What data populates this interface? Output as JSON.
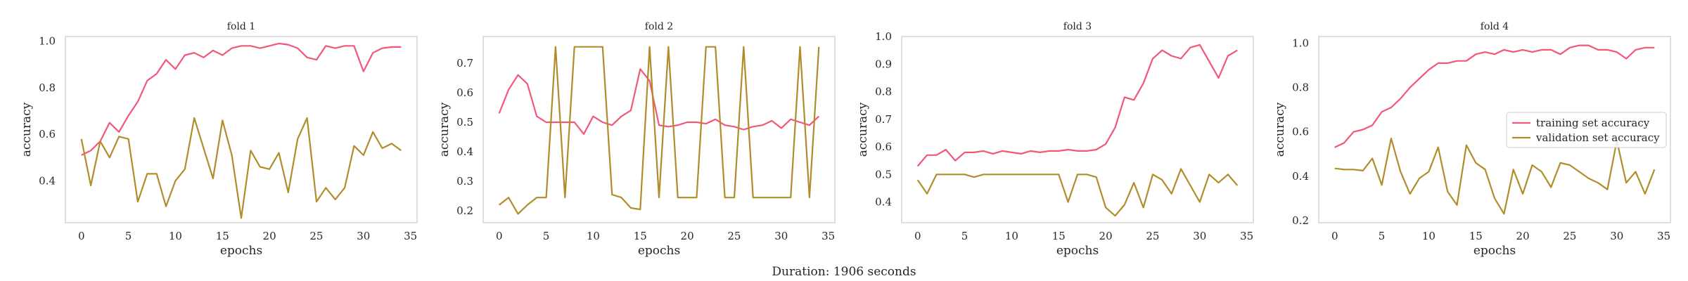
{
  "footer": {
    "duration_text": "Duration: 1906 seconds"
  },
  "colors": {
    "training": "#f25778",
    "validation": "#b08d2a",
    "frame": "#cccccc",
    "text": "#262626"
  },
  "legend": {
    "training_label": "training set accuracy",
    "validation_label": "validation set accuracy",
    "placement": "center-right of fold 4"
  },
  "chart_data": [
    {
      "type": "line",
      "title": "fold 1",
      "xlabel": "epochs",
      "ylabel": "accuracy",
      "xlim": [
        -1.7,
        35.7
      ],
      "ylim": [
        0.22,
        1.02
      ],
      "xticks": [
        0,
        5,
        10,
        15,
        20,
        25,
        30,
        35
      ],
      "yticks": [
        0.4,
        0.6,
        0.8,
        1.0
      ],
      "ytick_labels": [
        "0.4",
        "0.6",
        "0.8",
        "1.0"
      ],
      "grid": false,
      "x": [
        0,
        1,
        2,
        3,
        4,
        5,
        6,
        7,
        8,
        9,
        10,
        11,
        12,
        13,
        14,
        15,
        16,
        17,
        18,
        19,
        20,
        21,
        22,
        23,
        24,
        25,
        26,
        27,
        28,
        29,
        30,
        31,
        32,
        33,
        34
      ],
      "series": [
        {
          "name": "training set accuracy",
          "values": [
            0.51,
            0.53,
            0.57,
            0.65,
            0.61,
            0.68,
            0.74,
            0.83,
            0.86,
            0.92,
            0.88,
            0.94,
            0.95,
            0.93,
            0.96,
            0.94,
            0.97,
            0.98,
            0.98,
            0.97,
            0.98,
            0.99,
            0.985,
            0.97,
            0.93,
            0.92,
            0.98,
            0.97,
            0.98,
            0.98,
            0.87,
            0.95,
            0.97,
            0.975,
            0.975
          ]
        },
        {
          "name": "validation set accuracy",
          "values": [
            0.58,
            0.38,
            0.57,
            0.5,
            0.59,
            0.58,
            0.31,
            0.43,
            0.43,
            0.29,
            0.4,
            0.45,
            0.67,
            0.54,
            0.41,
            0.66,
            0.51,
            0.24,
            0.53,
            0.46,
            0.45,
            0.52,
            0.35,
            0.58,
            0.67,
            0.31,
            0.37,
            0.32,
            0.37,
            0.55,
            0.51,
            0.61,
            0.54,
            0.56,
            0.53
          ]
        }
      ]
    },
    {
      "type": "line",
      "title": "fold 2",
      "xlabel": "epochs",
      "ylabel": "accuracy",
      "xlim": [
        -1.7,
        35.7
      ],
      "ylim": [
        0.16,
        0.79
      ],
      "xticks": [
        0,
        5,
        10,
        15,
        20,
        25,
        30,
        35
      ],
      "yticks": [
        0.2,
        0.3,
        0.4,
        0.5,
        0.6,
        0.7
      ],
      "ytick_labels": [
        "0.2",
        "0.3",
        "0.4",
        "0.5",
        "0.6",
        "0.7"
      ],
      "grid": false,
      "x": [
        0,
        1,
        2,
        3,
        4,
        5,
        6,
        7,
        8,
        9,
        10,
        11,
        12,
        13,
        14,
        15,
        16,
        17,
        18,
        19,
        20,
        21,
        22,
        23,
        24,
        25,
        26,
        27,
        28,
        29,
        30,
        31,
        32,
        33,
        34
      ],
      "series": [
        {
          "name": "training set accuracy",
          "values": [
            0.53,
            0.61,
            0.66,
            0.63,
            0.52,
            0.5,
            0.5,
            0.5,
            0.5,
            0.46,
            0.52,
            0.5,
            0.49,
            0.52,
            0.54,
            0.68,
            0.64,
            0.49,
            0.485,
            0.49,
            0.5,
            0.5,
            0.495,
            0.51,
            0.49,
            0.485,
            0.475,
            0.485,
            0.49,
            0.505,
            0.48,
            0.51,
            0.5,
            0.49,
            0.52
          ]
        },
        {
          "name": "validation set accuracy",
          "values": [
            0.22,
            0.245,
            0.19,
            0.22,
            0.245,
            0.245,
            0.755,
            0.245,
            0.755,
            0.755,
            0.755,
            0.755,
            0.255,
            0.245,
            0.21,
            0.205,
            0.755,
            0.245,
            0.755,
            0.245,
            0.245,
            0.245,
            0.755,
            0.755,
            0.245,
            0.245,
            0.755,
            0.245,
            0.245,
            0.245,
            0.245,
            0.245,
            0.755,
            0.245,
            0.755
          ]
        }
      ]
    },
    {
      "type": "line",
      "title": "fold 3",
      "xlabel": "epochs",
      "ylabel": "accuracy",
      "xlim": [
        -1.7,
        35.7
      ],
      "ylim": [
        0.325,
        1.0
      ],
      "xticks": [
        0,
        5,
        10,
        15,
        20,
        25,
        30,
        35
      ],
      "yticks": [
        0.4,
        0.5,
        0.6,
        0.7,
        0.8,
        0.9,
        1.0
      ],
      "ytick_labels": [
        "0.4",
        "0.5",
        "0.6",
        "0.7",
        "0.8",
        "0.9",
        "1.0"
      ],
      "grid": false,
      "x": [
        0,
        1,
        2,
        3,
        4,
        5,
        6,
        7,
        8,
        9,
        10,
        11,
        12,
        13,
        14,
        15,
        16,
        17,
        18,
        19,
        20,
        21,
        22,
        23,
        24,
        25,
        26,
        27,
        28,
        29,
        30,
        31,
        32,
        33,
        34
      ],
      "series": [
        {
          "name": "training set accuracy",
          "values": [
            0.53,
            0.57,
            0.57,
            0.59,
            0.55,
            0.58,
            0.58,
            0.585,
            0.575,
            0.585,
            0.58,
            0.575,
            0.585,
            0.58,
            0.585,
            0.585,
            0.59,
            0.585,
            0.585,
            0.59,
            0.61,
            0.67,
            0.78,
            0.77,
            0.83,
            0.92,
            0.95,
            0.93,
            0.92,
            0.96,
            0.97,
            0.91,
            0.85,
            0.93,
            0.95
          ]
        },
        {
          "name": "validation set accuracy",
          "values": [
            0.48,
            0.43,
            0.5,
            0.5,
            0.5,
            0.5,
            0.49,
            0.5,
            0.5,
            0.5,
            0.5,
            0.5,
            0.5,
            0.5,
            0.5,
            0.5,
            0.4,
            0.5,
            0.5,
            0.49,
            0.38,
            0.35,
            0.39,
            0.47,
            0.38,
            0.5,
            0.48,
            0.43,
            0.52,
            0.46,
            0.4,
            0.5,
            0.47,
            0.5,
            0.46
          ]
        }
      ]
    },
    {
      "type": "line",
      "title": "fold 4",
      "xlabel": "epochs",
      "ylabel": "accuracy",
      "xlim": [
        -1.7,
        35.7
      ],
      "ylim": [
        0.19,
        1.03
      ],
      "xticks": [
        0,
        5,
        10,
        15,
        20,
        25,
        30,
        35
      ],
      "yticks": [
        0.2,
        0.4,
        0.6,
        0.8,
        1.0
      ],
      "ytick_labels": [
        "0.2",
        "0.4",
        "0.6",
        "0.8",
        "1.0"
      ],
      "grid": false,
      "x": [
        0,
        1,
        2,
        3,
        4,
        5,
        6,
        7,
        8,
        9,
        10,
        11,
        12,
        13,
        14,
        15,
        16,
        17,
        18,
        19,
        20,
        21,
        22,
        23,
        24,
        25,
        26,
        27,
        28,
        29,
        30,
        31,
        32,
        33,
        34
      ],
      "series": [
        {
          "name": "training set accuracy",
          "values": [
            0.53,
            0.55,
            0.6,
            0.61,
            0.63,
            0.69,
            0.71,
            0.75,
            0.8,
            0.84,
            0.88,
            0.91,
            0.91,
            0.92,
            0.92,
            0.95,
            0.96,
            0.95,
            0.97,
            0.96,
            0.97,
            0.96,
            0.97,
            0.97,
            0.95,
            0.98,
            0.99,
            0.99,
            0.97,
            0.97,
            0.96,
            0.93,
            0.97,
            0.98,
            0.98
          ]
        },
        {
          "name": "validation set accuracy",
          "values": [
            0.435,
            0.43,
            0.43,
            0.425,
            0.48,
            0.36,
            0.57,
            0.42,
            0.32,
            0.39,
            0.42,
            0.53,
            0.33,
            0.27,
            0.54,
            0.46,
            0.43,
            0.3,
            0.23,
            0.43,
            0.32,
            0.45,
            0.42,
            0.35,
            0.46,
            0.45,
            0.42,
            0.39,
            0.37,
            0.34,
            0.56,
            0.37,
            0.42,
            0.32,
            0.43
          ]
        }
      ]
    }
  ]
}
